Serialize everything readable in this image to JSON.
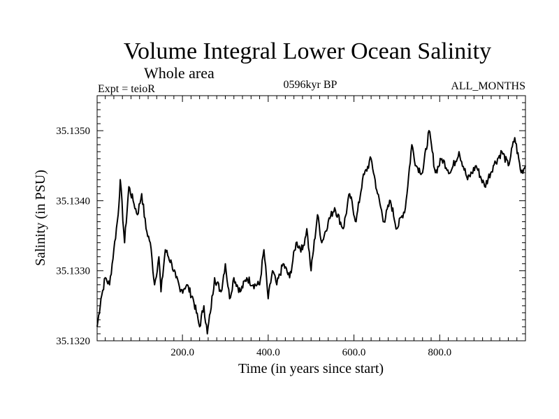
{
  "chart_data": {
    "type": "line",
    "title": "Volume Integral Lower Ocean Salinity",
    "subtitle": "Whole area",
    "expt_label": "Expt = teioR",
    "period_label": "0596kyr BP",
    "months_label": "ALL_MONTHS",
    "xlabel": "Time (in years since start)",
    "ylabel": "Salinity (in PSU)",
    "xlim": [
      1,
      1000
    ],
    "ylim": [
      35.132,
      35.1355
    ],
    "x_ticks": [
      200,
      400,
      600,
      800
    ],
    "x_tick_labels": [
      "200.0",
      "400.0",
      "600.0",
      "800.0"
    ],
    "y_ticks": [
      35.132,
      35.133,
      35.134,
      35.135
    ],
    "y_tick_labels": [
      "35.1320",
      "35.1330",
      "35.1340",
      "35.1350"
    ],
    "series": [
      {
        "name": "Salinity",
        "color": "#000000",
        "x": [
          1,
          10,
          20,
          30,
          40,
          50,
          55,
          65,
          75,
          85,
          95,
          105,
          115,
          125,
          135,
          145,
          150,
          160,
          175,
          185,
          195,
          210,
          225,
          240,
          250,
          258,
          265,
          275,
          290,
          300,
          310,
          320,
          335,
          350,
          365,
          380,
          390,
          400,
          410,
          420,
          435,
          450,
          465,
          480,
          490,
          500,
          515,
          525,
          540,
          555,
          575,
          590,
          605,
          620,
          640,
          655,
          670,
          685,
          700,
          720,
          735,
          745,
          760,
          775,
          790,
          805,
          825,
          845,
          865,
          885,
          905,
          925,
          945,
          960,
          975,
          990,
          1000
        ],
        "values": [
          35.1322,
          35.1326,
          35.1329,
          35.1328,
          35.1333,
          35.1338,
          35.1343,
          35.1334,
          35.1342,
          35.134,
          35.1338,
          35.1341,
          35.1336,
          35.1334,
          35.1328,
          35.1332,
          35.1327,
          35.1333,
          35.1331,
          35.1329,
          35.1327,
          35.1328,
          35.1326,
          35.1322,
          35.1325,
          35.1321,
          35.1324,
          35.1329,
          35.1327,
          35.1331,
          35.1326,
          35.1329,
          35.1327,
          35.1329,
          35.1328,
          35.1328,
          35.1333,
          35.1326,
          35.133,
          35.1328,
          35.1331,
          35.1329,
          35.1334,
          35.1333,
          35.1336,
          35.133,
          35.1338,
          35.1334,
          35.1337,
          35.1339,
          35.1336,
          35.1341,
          35.1337,
          35.1343,
          35.1346,
          35.1341,
          35.1337,
          35.134,
          35.1336,
          35.1339,
          35.1348,
          35.1345,
          35.1344,
          35.135,
          35.1344,
          35.1346,
          35.1344,
          35.1347,
          35.1343,
          35.1345,
          35.1342,
          35.1345,
          35.1347,
          35.1345,
          35.1349,
          35.1344,
          35.1345
        ]
      }
    ]
  }
}
